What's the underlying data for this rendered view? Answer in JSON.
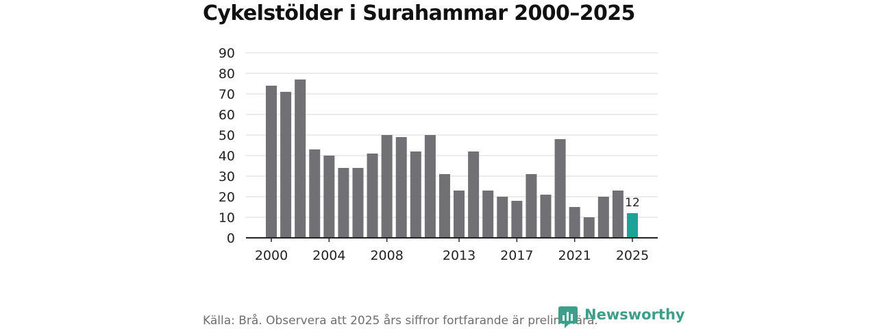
{
  "chart_data": {
    "type": "bar",
    "title": "Cykelstölder i Surahammar 2000–2025",
    "categories": [
      "2000",
      "2001",
      "2002",
      "2003",
      "2004",
      "2005",
      "2006",
      "2007",
      "2008",
      "2009",
      "2010",
      "2011",
      "2012",
      "2013",
      "2014",
      "2015",
      "2016",
      "2017",
      "2018",
      "2019",
      "2020",
      "2021",
      "2022",
      "2023",
      "2024",
      "2025"
    ],
    "values": [
      74,
      71,
      77,
      43,
      40,
      34,
      34,
      41,
      50,
      49,
      42,
      50,
      31,
      23,
      42,
      23,
      20,
      18,
      31,
      21,
      48,
      15,
      10,
      20,
      23,
      12
    ],
    "x_tick_labels": [
      "2000",
      "2004",
      "2008",
      "2013",
      "2017",
      "2021",
      "2025"
    ],
    "y_ticks": [
      "0",
      "10",
      "20",
      "30",
      "40",
      "50",
      "60",
      "70",
      "80",
      "90"
    ],
    "ylim": [
      0,
      90
    ],
    "grid": true,
    "bar_color": "#717074",
    "highlight_color": "#1aa396",
    "highlight_category": "2025",
    "highlight_label": "12",
    "xlabel": "",
    "ylabel": ""
  },
  "source": "Källa: Brå. Observera att 2025 års siffror fortfarande är preliminära.",
  "brand": {
    "name": "Newsworthy",
    "color": "#3d9e8a",
    "icon": "newsworthy-bar-chart-icon"
  }
}
